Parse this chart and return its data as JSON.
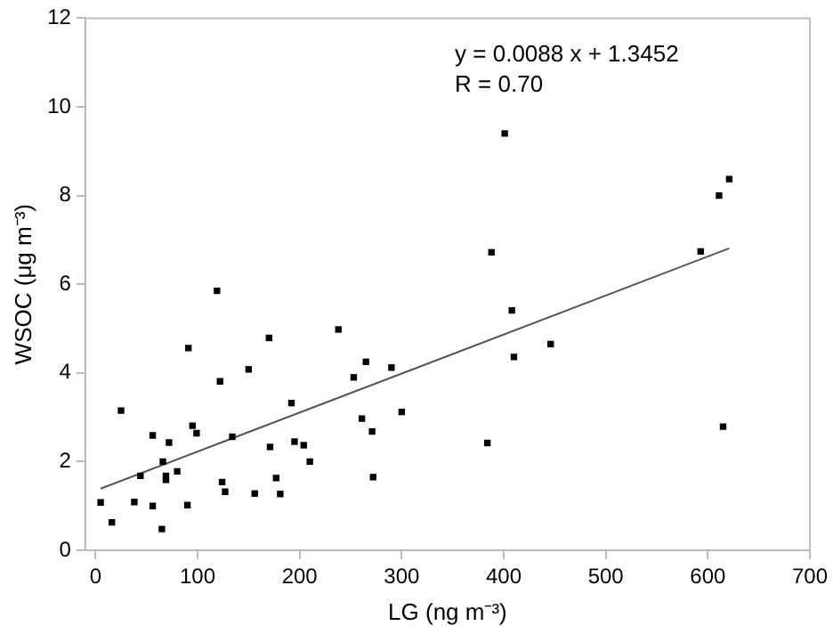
{
  "chart_data": {
    "type": "scatter",
    "xlabel": "LG (ng m⁻³)",
    "ylabel": "WSOC (μg m⁻³)",
    "annotations": [
      "y = 0.0088 x + 1.3452",
      "R = 0.70"
    ],
    "xlim": [
      -10,
      700
    ],
    "xticks": [
      0,
      100,
      200,
      300,
      400,
      500,
      600,
      700
    ],
    "ylim": [
      0,
      12
    ],
    "yticks": [
      0,
      2,
      4,
      6,
      8,
      10,
      12
    ],
    "grid": false,
    "legend": false,
    "marker": "square",
    "series": [
      {
        "color": "#000000",
        "x": [
          5,
          16,
          25,
          38,
          44,
          56,
          56,
          66,
          65,
          69,
          69,
          72,
          80,
          90,
          91,
          95,
          99,
          119,
          122,
          124,
          127,
          134,
          150,
          156,
          170,
          171,
          177,
          181,
          192,
          195,
          204,
          210,
          238,
          253,
          261,
          265,
          271,
          272,
          290,
          300,
          401,
          388,
          384,
          408,
          410,
          446,
          593,
          611,
          621,
          615
        ],
        "values": [
          1.08,
          0.63,
          3.15,
          1.09,
          1.68,
          2.59,
          1.0,
          2.0,
          0.48,
          1.68,
          1.59,
          2.43,
          1.78,
          1.02,
          4.56,
          2.81,
          2.64,
          5.85,
          3.81,
          1.54,
          1.32,
          2.56,
          4.08,
          1.28,
          4.79,
          2.33,
          1.63,
          1.27,
          3.32,
          2.45,
          2.37,
          2.0,
          4.98,
          3.9,
          2.97,
          4.25,
          2.68,
          1.65,
          4.12,
          3.12,
          9.4,
          6.72,
          2.42,
          5.41,
          4.36,
          4.65,
          6.74,
          8.0,
          8.37,
          2.79
        ]
      },
      {
        "type": "line",
        "color": "#555555",
        "x": [
          5,
          621
        ],
        "values": [
          1.39,
          6.81
        ],
        "marker": "none",
        "line_style": "solid"
      }
    ]
  }
}
